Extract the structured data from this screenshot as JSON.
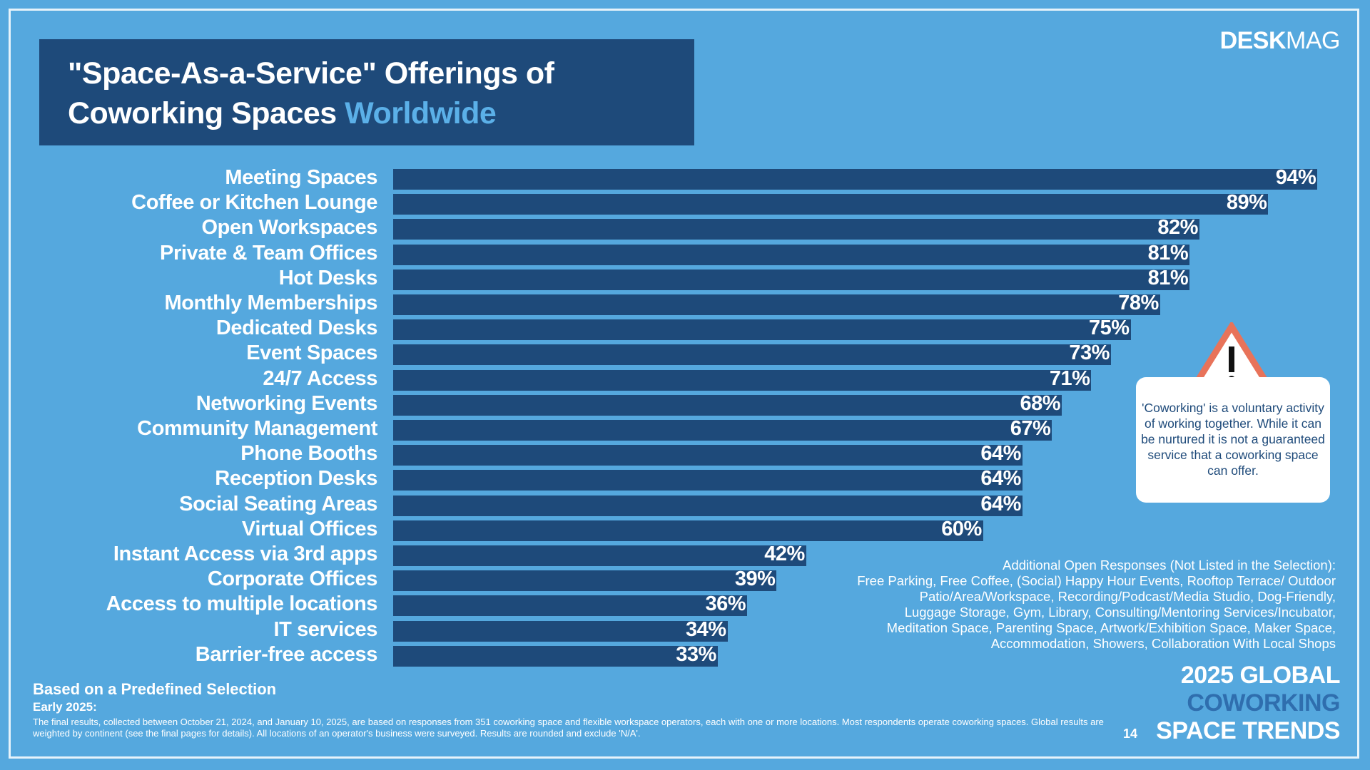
{
  "title": {
    "line1": "\"Space-As-a-Service\" Offerings of",
    "line2_main": "Coworking Spaces ",
    "line2_accent": "Worldwide"
  },
  "logo": {
    "bold": "DESK",
    "light": "MAG"
  },
  "colors": {
    "background": "#55a8de",
    "bar": "#1e4a7a",
    "accent": "#5bb0e8",
    "warning": "#e8735a"
  },
  "chart_data": {
    "type": "bar",
    "orientation": "horizontal",
    "categories": [
      "Meeting Spaces",
      "Coffee or Kitchen Lounge",
      "Open Workspaces",
      "Private & Team Offices",
      "Hot Desks",
      "Monthly Memberships",
      "Dedicated Desks",
      "Event Spaces",
      "24/7 Access",
      "Networking Events",
      "Community Management",
      "Phone Booths",
      "Reception Desks",
      "Social Seating Areas",
      "Virtual Offices",
      "Instant Access via 3rd apps",
      "Corporate Offices",
      "Access to multiple locations",
      "IT services",
      "Barrier-free access"
    ],
    "values": [
      94,
      89,
      82,
      81,
      81,
      78,
      75,
      73,
      71,
      68,
      67,
      64,
      64,
      64,
      60,
      42,
      39,
      36,
      34,
      33
    ],
    "value_labels": [
      "94%",
      "89%",
      "82%",
      "81%",
      "81%",
      "78%",
      "75%",
      "73%",
      "71%",
      "68%",
      "67%",
      "64%",
      "64%",
      "64%",
      "60%",
      "42%",
      "39%",
      "36%",
      "34%",
      "33%"
    ],
    "xlim": [
      0,
      100
    ],
    "grid": false,
    "legend": "none"
  },
  "note": {
    "icon": "warning-triangle-icon",
    "text": "'Coworking' is a voluntary activity of working together. While it can be nurtured it is not a guaranteed service that a coworking space can offer."
  },
  "additional": {
    "heading": "Additional Open Responses (Not Listed in the Selection):",
    "lines": [
      "Free Parking, Free Coffee, (Social) Happy Hour Events, Rooftop Terrace/ Outdoor",
      "Patio/Area/Workspace, Recording/Podcast/Media Studio, Dog-Friendly,",
      "Luggage Storage, Gym, Library, Consulting/Mentoring Services/Incubator,",
      "Meditation Space, Parenting Space, Artwork/Exhibition Space, Maker Space,",
      "Accommodation, Showers, Collaboration With Local Shops"
    ]
  },
  "footer": {
    "basis": "Based on a Predefined Selection",
    "period": "Early 2025:",
    "methodology": "The final results, collected between October 21, 2024, and January 10, 2025, are based on responses from 351 coworking space and flexible workspace operators, each with one or more locations. Most respondents operate coworking spaces. Global results are weighted by continent (see the final pages for details). All locations of an operator's business were surveyed. Results are rounded and exclude 'N/A'.",
    "page": "14",
    "brand": [
      "2025 GLOBAL",
      "COWORKING",
      "SPACE TRENDS"
    ]
  }
}
